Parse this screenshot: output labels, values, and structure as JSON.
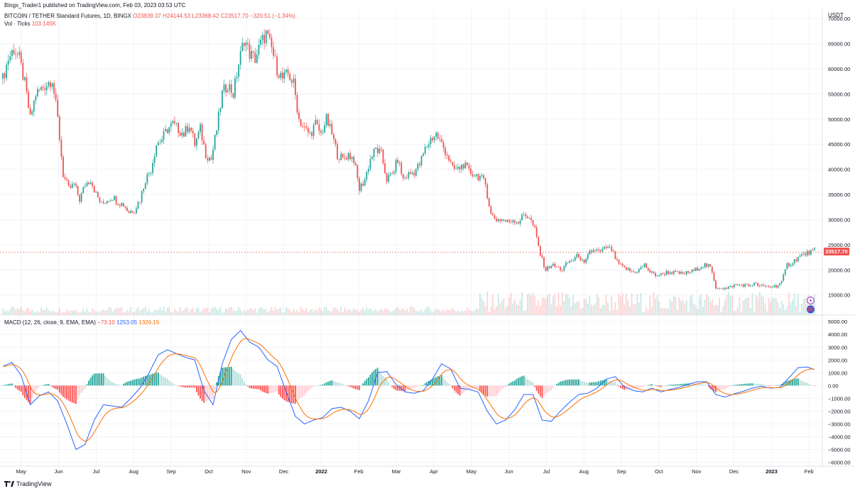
{
  "publisher": "Bingx_Trader1 published on TradingView.com, Feb 03, 2023 03:53 UTC",
  "legend": {
    "symbol": "BITCOIN / TETHER Standard Futures, 1D, BINGX",
    "o": "O23839.37",
    "h": "H24144.53",
    "l": "L23368.42",
    "c": "C23517.70",
    "chg": "−320.51 (−1.34%)",
    "vol_label": "Vol · Ticks",
    "vol_value": "103.145K",
    "macd_label": "MACD (12, 26, close, 9, EMA, EMA)",
    "macd_hist": "−73.10",
    "macd_line": "1253.05",
    "macd_signal": "1326.15"
  },
  "currency": "USDT",
  "last_price_badge": "23517.70",
  "footer": "TradingView",
  "colors": {
    "up": "#26a69a",
    "down": "#ef5350",
    "macd": "#2962ff",
    "signal": "#ff6d00",
    "grid": "#f0f3fa"
  },
  "icons": [
    "bolt-icon",
    "flag-icon",
    "tradingview-logo-icon"
  ],
  "chart_data": {
    "type": "candlestick",
    "price_axis": {
      "ticks": [
        "70000.00",
        "65000.00",
        "60000.00",
        "55000.00",
        "50000.00",
        "45000.00",
        "40000.00",
        "35000.00",
        "30000.00",
        "25000.00",
        "20000.00",
        "15000.00"
      ],
      "ylim": [
        11000,
        72000
      ]
    },
    "macd_axis": {
      "ticks": [
        "5000.00",
        "4000.00",
        "3000.00",
        "2000.00",
        "1000.00",
        "0.00",
        "−1000.00",
        "−2000.00",
        "−3000.00",
        "−4000.00",
        "−5000.00",
        "−6000.00"
      ],
      "ylim": [
        -6300,
        5400
      ]
    },
    "time_axis": [
      "May",
      "Jun",
      "Jul",
      "Aug",
      "Sep",
      "Oct",
      "Nov",
      "Dec",
      "2022",
      "Feb",
      "Mar",
      "Apr",
      "May",
      "Jun",
      "Jul",
      "Aug",
      "Sep",
      "Oct",
      "Nov",
      "Dec",
      "2023",
      "Feb"
    ],
    "price_path": [
      [
        0,
        58000
      ],
      [
        3,
        62000
      ],
      [
        6,
        64000
      ],
      [
        9,
        62000
      ],
      [
        12,
        57000
      ],
      [
        15,
        50000
      ],
      [
        18,
        55000
      ],
      [
        21,
        56000
      ],
      [
        24,
        57000
      ],
      [
        27,
        58000
      ],
      [
        30,
        50000
      ],
      [
        33,
        39000
      ],
      [
        36,
        36000
      ],
      [
        39,
        37000
      ],
      [
        42,
        34000
      ],
      [
        45,
        37000
      ],
      [
        48,
        38000
      ],
      [
        51,
        35000
      ],
      [
        54,
        33000
      ],
      [
        57,
        34000
      ],
      [
        60,
        34500
      ],
      [
        63,
        33500
      ],
      [
        66,
        33000
      ],
      [
        69,
        31500
      ],
      [
        72,
        32000
      ],
      [
        75,
        34000
      ],
      [
        78,
        38000
      ],
      [
        81,
        40000
      ],
      [
        84,
        45000
      ],
      [
        87,
        46000
      ],
      [
        90,
        48000
      ],
      [
        93,
        49000
      ],
      [
        96,
        48000
      ],
      [
        99,
        47000
      ],
      [
        102,
        49000
      ],
      [
        105,
        45000
      ],
      [
        108,
        48000
      ],
      [
        111,
        43000
      ],
      [
        114,
        42000
      ],
      [
        117,
        48000
      ],
      [
        120,
        55000
      ],
      [
        123,
        57000
      ],
      [
        126,
        55000
      ],
      [
        129,
        61000
      ],
      [
        132,
        66000
      ],
      [
        135,
        63000
      ],
      [
        138,
        62000
      ],
      [
        141,
        65000
      ],
      [
        144,
        67000
      ],
      [
        147,
        64000
      ],
      [
        150,
        60000
      ],
      [
        153,
        58000
      ],
      [
        156,
        59000
      ],
      [
        159,
        57000
      ],
      [
        162,
        50000
      ],
      [
        165,
        48000
      ],
      [
        168,
        47000
      ],
      [
        171,
        49000
      ],
      [
        174,
        47000
      ],
      [
        177,
        50000
      ],
      [
        180,
        47000
      ],
      [
        183,
        43000
      ],
      [
        186,
        42000
      ],
      [
        189,
        43000
      ],
      [
        192,
        42000
      ],
      [
        195,
        36000
      ],
      [
        198,
        38000
      ],
      [
        201,
        42000
      ],
      [
        204,
        44000
      ],
      [
        207,
        43000
      ],
      [
        210,
        38000
      ],
      [
        213,
        39000
      ],
      [
        216,
        42000
      ],
      [
        219,
        38000
      ],
      [
        222,
        39000
      ],
      [
        225,
        39500
      ],
      [
        228,
        41000
      ],
      [
        231,
        44000
      ],
      [
        234,
        46000
      ],
      [
        237,
        47000
      ],
      [
        240,
        45000
      ],
      [
        243,
        43000
      ],
      [
        246,
        40000
      ],
      [
        249,
        40000
      ],
      [
        252,
        41000
      ],
      [
        255,
        39500
      ],
      [
        258,
        39000
      ],
      [
        261,
        38500
      ],
      [
        264,
        37000
      ],
      [
        267,
        31000
      ],
      [
        270,
        30000
      ],
      [
        273,
        30000
      ],
      [
        276,
        29500
      ],
      [
        279,
        30000
      ],
      [
        282,
        29500
      ],
      [
        285,
        31000
      ],
      [
        288,
        30500
      ],
      [
        291,
        28000
      ],
      [
        294,
        23000
      ],
      [
        297,
        20000
      ],
      [
        300,
        21000
      ],
      [
        303,
        20500
      ],
      [
        306,
        20000
      ],
      [
        309,
        21500
      ],
      [
        312,
        22000
      ],
      [
        315,
        23000
      ],
      [
        318,
        21000
      ],
      [
        321,
        23500
      ],
      [
        324,
        24000
      ],
      [
        327,
        23500
      ],
      [
        330,
        24500
      ],
      [
        333,
        24000
      ],
      [
        336,
        21500
      ],
      [
        339,
        20500
      ],
      [
        342,
        20000
      ],
      [
        345,
        19500
      ],
      [
        348,
        20000
      ],
      [
        351,
        21000
      ],
      [
        354,
        19500
      ],
      [
        357,
        19000
      ],
      [
        360,
        19000
      ],
      [
        363,
        19500
      ],
      [
        366,
        19500
      ],
      [
        369,
        19300
      ],
      [
        372,
        19200
      ],
      [
        375,
        19500
      ],
      [
        378,
        19800
      ],
      [
        381,
        20500
      ],
      [
        384,
        21000
      ],
      [
        387,
        20500
      ],
      [
        390,
        16500
      ],
      [
        393,
        16500
      ],
      [
        396,
        16200
      ],
      [
        399,
        16800
      ],
      [
        402,
        17000
      ],
      [
        405,
        17000
      ],
      [
        408,
        16800
      ],
      [
        411,
        17200
      ],
      [
        414,
        16800
      ],
      [
        417,
        16700
      ],
      [
        420,
        16600
      ],
      [
        423,
        16800
      ],
      [
        426,
        17500
      ],
      [
        429,
        21000
      ],
      [
        432,
        21500
      ],
      [
        435,
        22500
      ],
      [
        438,
        23000
      ],
      [
        441,
        23500
      ],
      [
        444,
        23800
      ]
    ],
    "macd_path": [
      [
        0,
        1500
      ],
      [
        5,
        1800
      ],
      [
        10,
        800
      ],
      [
        15,
        -1500
      ],
      [
        20,
        -800
      ],
      [
        25,
        -500
      ],
      [
        30,
        -1200
      ],
      [
        35,
        -3000
      ],
      [
        40,
        -5000
      ],
      [
        45,
        -4600
      ],
      [
        50,
        -2700
      ],
      [
        55,
        -1500
      ],
      [
        60,
        -1600
      ],
      [
        65,
        -1700
      ],
      [
        70,
        -1000
      ],
      [
        75,
        -200
      ],
      [
        80,
        1000
      ],
      [
        85,
        2400
      ],
      [
        90,
        2800
      ],
      [
        95,
        2500
      ],
      [
        100,
        2200
      ],
      [
        105,
        2000
      ],
      [
        110,
        -400
      ],
      [
        115,
        -1500
      ],
      [
        120,
        1700
      ],
      [
        125,
        3600
      ],
      [
        130,
        4300
      ],
      [
        135,
        3400
      ],
      [
        140,
        3000
      ],
      [
        145,
        2000
      ],
      [
        150,
        1500
      ],
      [
        155,
        -500
      ],
      [
        160,
        -2400
      ],
      [
        165,
        -3000
      ],
      [
        170,
        -2700
      ],
      [
        175,
        -2500
      ],
      [
        180,
        -1800
      ],
      [
        185,
        -1700
      ],
      [
        190,
        -2000
      ],
      [
        195,
        -2600
      ],
      [
        200,
        -1200
      ],
      [
        205,
        1000
      ],
      [
        210,
        1100
      ],
      [
        215,
        100
      ],
      [
        220,
        -500
      ],
      [
        225,
        -600
      ],
      [
        230,
        -400
      ],
      [
        235,
        500
      ],
      [
        240,
        1700
      ],
      [
        245,
        1300
      ],
      [
        250,
        -200
      ],
      [
        255,
        -300
      ],
      [
        260,
        -500
      ],
      [
        265,
        -2000
      ],
      [
        270,
        -3000
      ],
      [
        275,
        -2700
      ],
      [
        280,
        -1900
      ],
      [
        285,
        -700
      ],
      [
        290,
        -700
      ],
      [
        295,
        -2700
      ],
      [
        300,
        -2800
      ],
      [
        305,
        -2000
      ],
      [
        310,
        -1300
      ],
      [
        315,
        -700
      ],
      [
        320,
        -600
      ],
      [
        325,
        -200
      ],
      [
        330,
        500
      ],
      [
        335,
        700
      ],
      [
        340,
        -100
      ],
      [
        345,
        -400
      ],
      [
        350,
        -500
      ],
      [
        355,
        -200
      ],
      [
        360,
        -500
      ],
      [
        365,
        -300
      ],
      [
        370,
        -150
      ],
      [
        375,
        100
      ],
      [
        380,
        300
      ],
      [
        385,
        300
      ],
      [
        390,
        -700
      ],
      [
        395,
        -900
      ],
      [
        400,
        -650
      ],
      [
        405,
        -450
      ],
      [
        410,
        -200
      ],
      [
        415,
        -50
      ],
      [
        420,
        -200
      ],
      [
        425,
        -150
      ],
      [
        430,
        600
      ],
      [
        435,
        1400
      ],
      [
        440,
        1450
      ],
      [
        444,
        1250
      ]
    ]
  }
}
